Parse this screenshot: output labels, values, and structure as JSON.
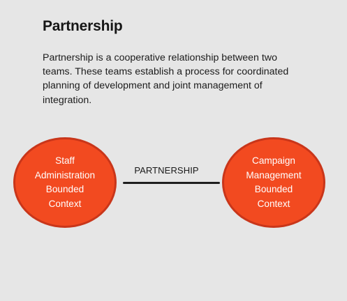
{
  "title": "Partnership",
  "description": "Partnership is a cooperative relationship between two teams. These teams establish a process for coordinated planning of development and joint management of integration.",
  "diagram": {
    "left_context": {
      "lines": [
        "Staff",
        "Administration",
        "Bounded",
        "Context"
      ]
    },
    "relationship": {
      "label": "PARTNERSHIP"
    },
    "right_context": {
      "lines": [
        "Campaign",
        "Management",
        "Bounded",
        "Context"
      ]
    },
    "colors": {
      "node_fill": "#f24a20",
      "node_border": "#c9361a",
      "connector": "#1e1e1e",
      "background": "#e6e6e6"
    }
  }
}
